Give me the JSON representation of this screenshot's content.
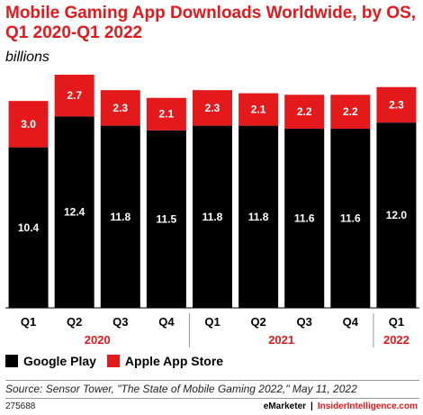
{
  "header": {
    "title": "Mobile Gaming App Downloads Worldwide, by OS, Q1 2020-Q1 2022",
    "subtitle": "billions"
  },
  "legend": {
    "google_play": "Google Play",
    "apple_app_store": "Apple App Store"
  },
  "footer": {
    "source": "Source: Sensor Tower, \"The State of Mobile Gaming 2022,\" May 11, 2022",
    "chart_id": "275688",
    "brand_emarketer": "eMarketer",
    "separator": "|",
    "brand_ii": "InsiderIntelligence.com"
  },
  "colors": {
    "google_play": "#000000",
    "apple_app_store": "#e3191c",
    "title": "#e3191c"
  },
  "chart_data": {
    "type": "bar",
    "stacked": true,
    "title": "Mobile Gaming App Downloads Worldwide, by OS, Q1 2020-Q1 2022",
    "subtitle": "billions",
    "categories": [
      "Q1",
      "Q2",
      "Q3",
      "Q4",
      "Q1",
      "Q2",
      "Q3",
      "Q4",
      "Q1"
    ],
    "groups": [
      {
        "label": "2020",
        "count": 4
      },
      {
        "label": "2021",
        "count": 4
      },
      {
        "label": "2022",
        "count": 1
      }
    ],
    "series": [
      {
        "name": "Google Play",
        "values": [
          10.4,
          12.4,
          11.8,
          11.5,
          11.8,
          11.8,
          11.6,
          11.6,
          12.0
        ],
        "labels": [
          "10.4",
          "12.4",
          "11.8",
          "11.5",
          "11.8",
          "11.8",
          "11.6",
          "11.6",
          "12.0"
        ],
        "color": "#000000"
      },
      {
        "name": "Apple App Store",
        "values": [
          3.0,
          2.7,
          2.3,
          2.1,
          2.3,
          2.1,
          2.2,
          2.2,
          2.3
        ],
        "labels": [
          "3.0",
          "2.7",
          "2.3",
          "2.1",
          "2.3",
          "2.1",
          "2.2",
          "2.2",
          "2.3"
        ],
        "color": "#e3191c"
      }
    ],
    "ylim": [
      0,
      15.1
    ],
    "grid": false,
    "legend_position": "bottom-left"
  }
}
